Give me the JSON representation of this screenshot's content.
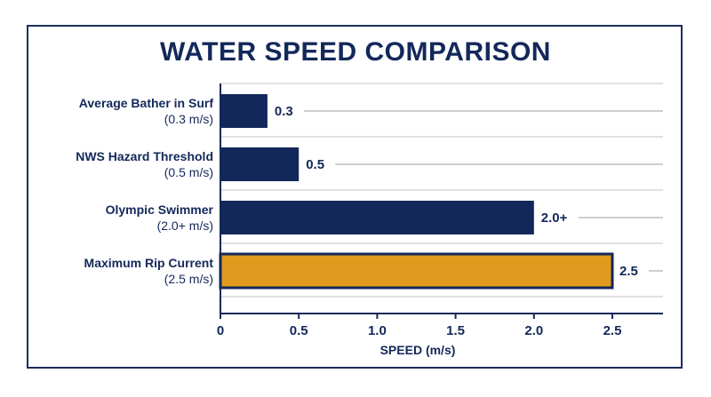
{
  "chart_data": {
    "type": "bar",
    "orientation": "horizontal",
    "title": "WATER SPEED COMPARISON",
    "xlabel": "SPEED (m/s)",
    "ylabel": "",
    "xlim": [
      0,
      2.85
    ],
    "xticks": [
      "0",
      "0.5",
      "1.0",
      "1.5",
      "2.0",
      "2.5"
    ],
    "categories": [
      {
        "name": "Average Bather in Surf",
        "sub": "(0.3 m/s)"
      },
      {
        "name": "NWS Hazard Threshold",
        "sub": "(0.5 m/s)"
      },
      {
        "name": "Olympic Swimmer",
        "sub": "(2.0+ m/s)"
      },
      {
        "name": "Maximum Rip Current",
        "sub": "(2.5 m/s)"
      }
    ],
    "values": [
      0.3,
      0.5,
      2.0,
      2.5
    ],
    "value_labels": [
      "0.3",
      "0.5",
      "2.0+",
      "2.5"
    ],
    "colors": [
      "#13285a",
      "#13285a",
      "#13285a",
      "#e09b1e"
    ],
    "grid": true
  }
}
